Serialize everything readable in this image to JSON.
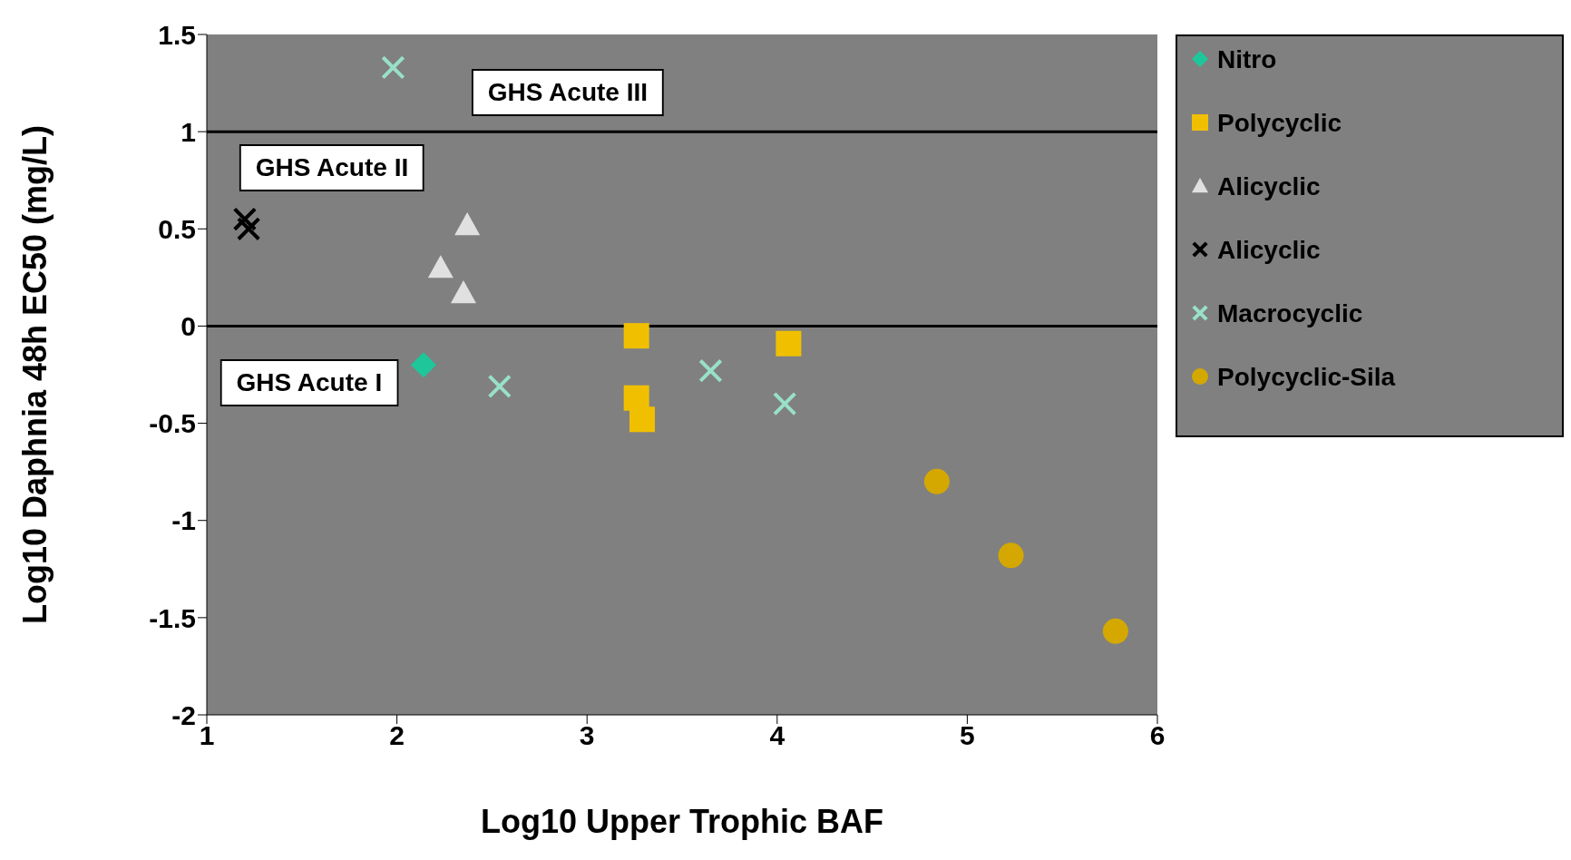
{
  "chart_data": {
    "type": "scatter",
    "xlabel": "Log10 Upper Trophic BAF",
    "ylabel": "Log10 Daphnia 48h EC50 (mg/L)",
    "xlim": [
      1,
      6
    ],
    "xticks": [
      1,
      2,
      3,
      4,
      5,
      6
    ],
    "ylim": [
      -2,
      1.5
    ],
    "yticks": [
      -2,
      -1.5,
      -1,
      -0.5,
      0,
      0.5,
      1,
      1.5
    ],
    "grid": false,
    "legend": "right",
    "series": [
      {
        "name": "Nitro",
        "color": "#1ec79a",
        "marker": "diamond",
        "x": [
          2.14
        ],
        "values": [
          -0.2
        ]
      },
      {
        "name": "Polycyclic",
        "color": "#f0c000",
        "marker": "square",
        "x": [
          3.26,
          3.26,
          3.29,
          4.06
        ],
        "values": [
          -0.05,
          -0.37,
          -0.48,
          -0.09
        ]
      },
      {
        "name": "Alicyclic",
        "color": "#e0e0e0",
        "marker": "triangle",
        "x": [
          2.37,
          2.23,
          2.35
        ],
        "values": [
          0.52,
          0.3,
          0.17
        ]
      },
      {
        "name": "Alicyclic",
        "color": "#000000",
        "marker": "cross",
        "x": [
          1.2,
          1.22
        ],
        "values": [
          0.55,
          0.5
        ]
      },
      {
        "name": "Macrocyclic",
        "color": "#99e0c8",
        "marker": "cross",
        "x": [
          1.98,
          2.54,
          3.65,
          4.04
        ],
        "values": [
          1.33,
          -0.31,
          -0.23,
          -0.4
        ]
      },
      {
        "name": "Polycyclic-Sila",
        "color": "#d4a800",
        "marker": "circle",
        "x": [
          4.84,
          5.23,
          5.78
        ],
        "values": [
          -0.8,
          -1.18,
          -1.57
        ]
      }
    ],
    "ref_lines": [
      {
        "axis": "y",
        "value": 1,
        "color": "#000000"
      },
      {
        "axis": "y",
        "value": 0,
        "color": "#000000"
      }
    ],
    "annotations": [
      "GHS Acute III",
      "GHS Acute II",
      "GHS Acute I"
    ]
  }
}
